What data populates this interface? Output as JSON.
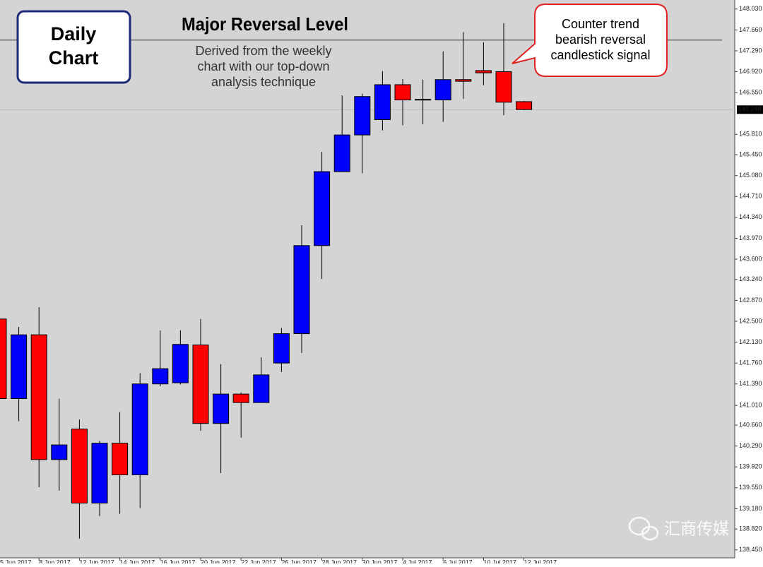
{
  "chart_data": {
    "type": "candlestick",
    "categories": [
      "5 Jun 2017",
      null,
      "8 Jun 2017",
      null,
      "12 Jun 2017",
      null,
      "14 Jun 2017",
      null,
      "16 Jun 2017",
      null,
      "20 Jun 2017",
      null,
      "22 Jun 2017",
      null,
      "26 Jun 2017",
      null,
      "28 Jun 2017",
      null,
      "30 Jun 2017",
      null,
      "4 Jul 2017",
      null,
      "6 Jul 2017",
      null,
      "10 Jul 2017",
      null,
      "12 Jul 2017"
    ],
    "open": [
      142.54,
      141.13,
      142.26,
      140.05,
      140.59,
      139.28,
      140.34,
      139.78,
      141.39,
      141.41,
      142.08,
      140.69,
      141.21,
      141.06,
      141.76,
      142.28,
      143.84,
      145.15,
      145.8,
      146.07,
      146.69,
      146.42,
      146.42,
      146.78,
      146.94,
      146.92,
      146.39
    ],
    "high": [
      142.56,
      142.4,
      142.75,
      141.13,
      140.76,
      140.38,
      140.89,
      141.58,
      142.34,
      142.34,
      142.54,
      141.74,
      141.24,
      141.86,
      142.38,
      144.2,
      145.5,
      146.5,
      146.53,
      146.93,
      146.79,
      146.78,
      147.28,
      147.62,
      147.44,
      147.78,
      146.4
    ],
    "low": [
      141.1,
      140.73,
      139.56,
      139.5,
      138.65,
      139.05,
      139.09,
      139.19,
      141.35,
      141.38,
      140.56,
      139.81,
      140.44,
      141.06,
      141.6,
      141.94,
      143.25,
      145.15,
      145.12,
      145.88,
      145.97,
      145.99,
      146.03,
      146.44,
      146.68,
      146.15,
      146.24
    ],
    "close": [
      141.13,
      142.26,
      140.05,
      140.31,
      139.28,
      140.34,
      139.78,
      141.39,
      141.66,
      142.09,
      140.69,
      141.21,
      141.06,
      141.55,
      142.28,
      143.84,
      145.15,
      145.8,
      146.48,
      146.69,
      146.42,
      146.43,
      146.78,
      146.75,
      146.9,
      146.38,
      146.25
    ],
    "up_color": "#0000ff",
    "down_color": "#ff0000",
    "ylim": [
      138.31,
      148.19
    ],
    "yticks": [
      {
        "value": 148.03,
        "label": "148.030"
      },
      {
        "value": 147.66,
        "label": "147.660"
      },
      {
        "value": 147.29,
        "label": "147.290"
      },
      {
        "value": 146.92,
        "label": "146.920"
      },
      {
        "value": 146.55,
        "label": "146.550"
      },
      {
        "value": 145.81,
        "label": "145.810"
      },
      {
        "value": 145.45,
        "label": "145.450"
      },
      {
        "value": 145.08,
        "label": "145.080"
      },
      {
        "value": 144.71,
        "label": "144.710"
      },
      {
        "value": 144.34,
        "label": "144.340"
      },
      {
        "value": 143.97,
        "label": "143.970"
      },
      {
        "value": 143.6,
        "label": "143.600"
      },
      {
        "value": 143.24,
        "label": "143.240"
      },
      {
        "value": 142.87,
        "label": "142.870"
      },
      {
        "value": 142.5,
        "label": "142.500"
      },
      {
        "value": 142.13,
        "label": "142.130"
      },
      {
        "value": 141.76,
        "label": "141.760"
      },
      {
        "value": 141.39,
        "label": "141.390"
      },
      {
        "value": 141.01,
        "label": "141.010"
      },
      {
        "value": 140.66,
        "label": "140.660"
      },
      {
        "value": 140.29,
        "label": "140.290"
      },
      {
        "value": 139.92,
        "label": "139.920"
      },
      {
        "value": 139.55,
        "label": "139.550"
      },
      {
        "value": 139.18,
        "label": "139.180"
      },
      {
        "value": 138.82,
        "label": "138.820"
      },
      {
        "value": 138.45,
        "label": "138.450"
      }
    ],
    "reversal_level": 147.48,
    "last_price": 146.248,
    "chart_label": [
      "Daily",
      "Chart"
    ],
    "level_title": "Major Reversal Level",
    "level_note": [
      "Derived from the weekly",
      "chart with our top-down",
      "analysis technique"
    ],
    "callout": [
      "Counter trend",
      "bearish reversal",
      "candlestick signal"
    ]
  },
  "watermark": "汇商传媒"
}
